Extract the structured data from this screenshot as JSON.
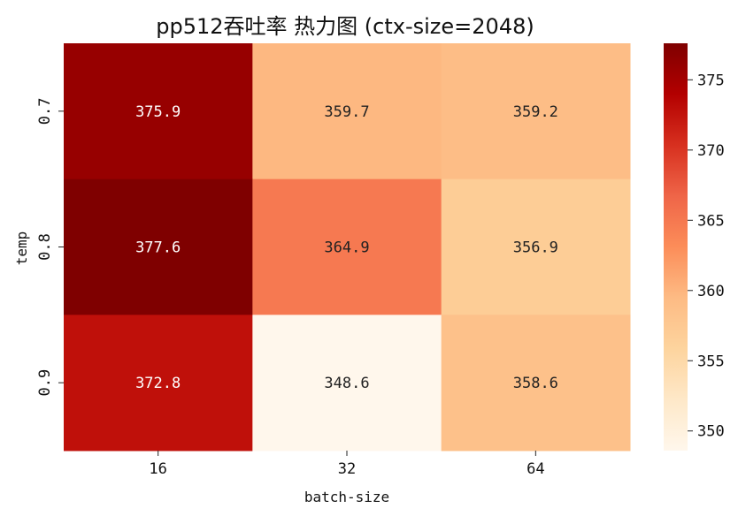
{
  "chart_data": {
    "type": "heatmap",
    "title": "pp512吞吐率 热力图 (ctx-size=2048)",
    "xlabel": "batch-size",
    "ylabel": "temp",
    "x_categories": [
      "16",
      "32",
      "64"
    ],
    "y_categories": [
      "0.7",
      "0.8",
      "0.9"
    ],
    "values": [
      [
        375.9,
        359.7,
        359.2
      ],
      [
        377.6,
        364.9,
        356.9
      ],
      [
        372.8,
        348.6,
        358.6
      ]
    ],
    "value_labels": [
      [
        "375.9",
        "359.7",
        "359.2"
      ],
      [
        "377.6",
        "364.9",
        "356.9"
      ],
      [
        "372.8",
        "348.6",
        "358.6"
      ]
    ],
    "colormap": "OrRd",
    "vmin": 348.6,
    "vmax": 377.6,
    "colorbar_ticks": [
      350,
      355,
      360,
      365,
      370,
      375
    ],
    "colorbar_tick_labels": [
      "350",
      "355",
      "360",
      "365",
      "370",
      "375"
    ],
    "colormap_stops": [
      {
        "t": 0.0,
        "color": "#fff7ec"
      },
      {
        "t": 0.125,
        "color": "#fee8c8"
      },
      {
        "t": 0.25,
        "color": "#fdd49e"
      },
      {
        "t": 0.375,
        "color": "#fdbb84"
      },
      {
        "t": 0.5,
        "color": "#fc8d59"
      },
      {
        "t": 0.625,
        "color": "#ef6548"
      },
      {
        "t": 0.75,
        "color": "#d7301f"
      },
      {
        "t": 0.875,
        "color": "#b30000"
      },
      {
        "t": 1.0,
        "color": "#7f0000"
      }
    ],
    "grid": false
  }
}
